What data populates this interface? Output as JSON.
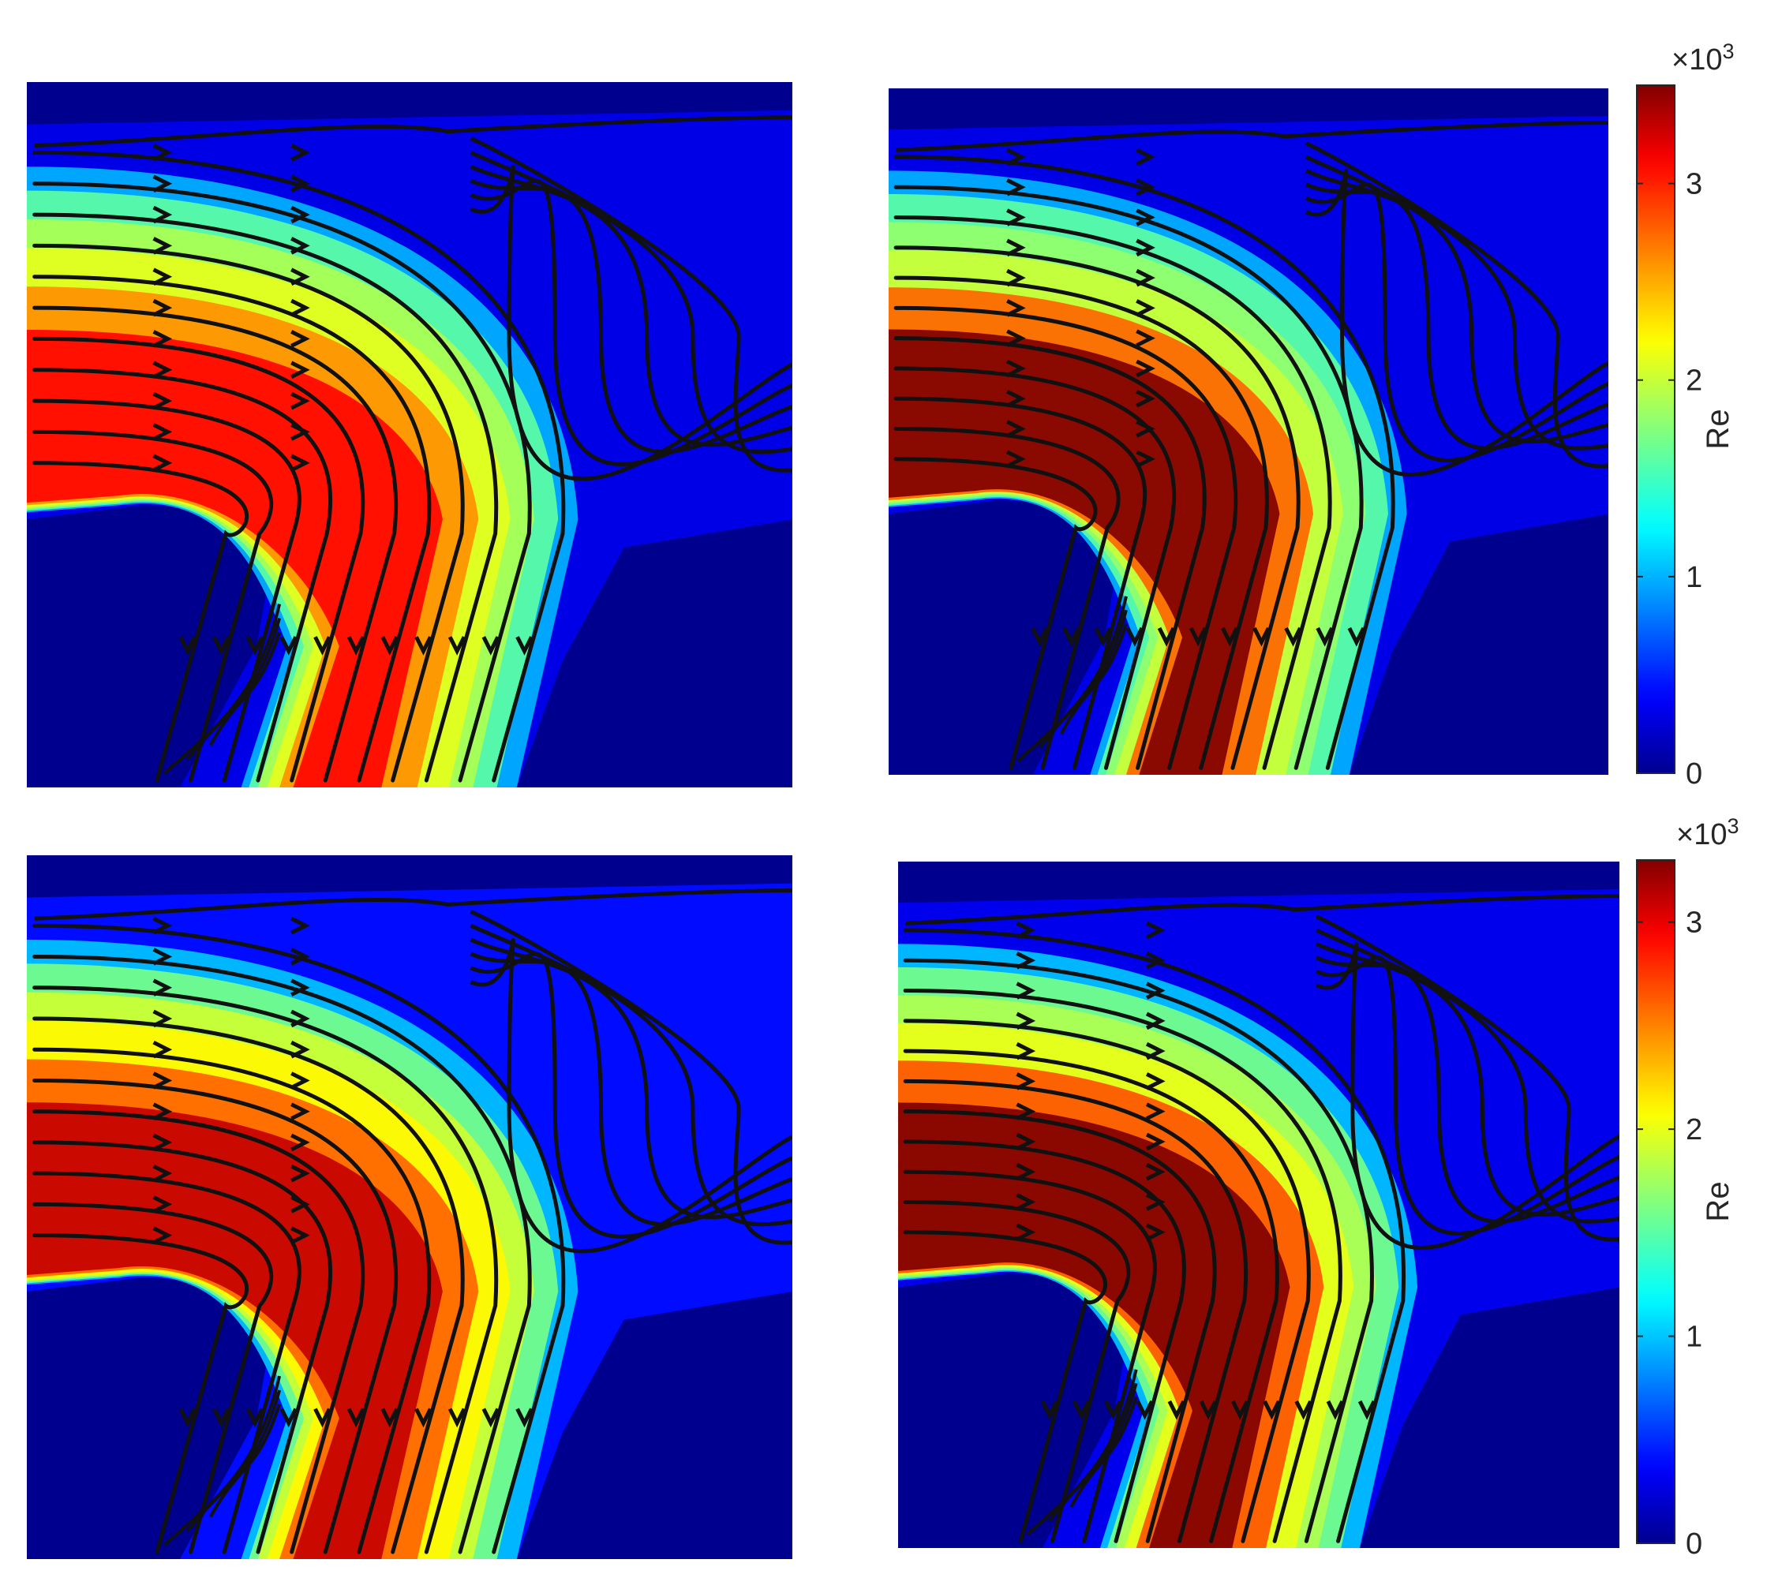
{
  "chart_data": [
    {
      "type": "heatmap",
      "panel": "top-left",
      "value_scale": "Re (x10^3)",
      "clim": [
        0,
        3.5
      ],
      "inlet_core_value": 2.1,
      "jet_peak_value": 3.1,
      "recirculation_value": 0.3
    },
    {
      "type": "heatmap",
      "panel": "top-right",
      "value_scale": "Re (x10^3)",
      "clim": [
        0,
        3.5
      ],
      "inlet_core_value": 2.0,
      "jet_peak_value": 3.5,
      "recirculation_value": 0.3,
      "colorbar": {
        "label": "Re",
        "exponent_base": "×10",
        "exponent": "3",
        "ticks": [
          "0",
          "1",
          "2",
          "3"
        ],
        "tick_values": [
          0,
          1,
          2,
          3
        ],
        "range": [
          0,
          3.5
        ]
      }
    },
    {
      "type": "heatmap",
      "panel": "bottom-left",
      "value_scale": "Re (x10^3)",
      "clim": [
        0,
        3.3
      ],
      "inlet_core_value": 2.1,
      "jet_peak_value": 3.1,
      "recirculation_value": 0.4
    },
    {
      "type": "heatmap",
      "panel": "bottom-right",
      "value_scale": "Re (x10^3)",
      "clim": [
        0,
        3.3
      ],
      "inlet_core_value": 2.0,
      "jet_peak_value": 3.3,
      "recirculation_value": 0.3,
      "colorbar": {
        "label": "Re",
        "exponent_base": "×10",
        "exponent": "3",
        "ticks": [
          "0",
          "1",
          "2",
          "3"
        ],
        "tick_values": [
          0,
          1,
          2,
          3
        ],
        "range": [
          0,
          3.3
        ]
      }
    }
  ],
  "colormap": "jet",
  "colormap_stops": [
    "#00008f",
    "#0000ff",
    "#00ffff",
    "#ffff00",
    "#ff0000",
    "#800000"
  ],
  "streamline_color": "#111111",
  "background_color": "#00008f"
}
